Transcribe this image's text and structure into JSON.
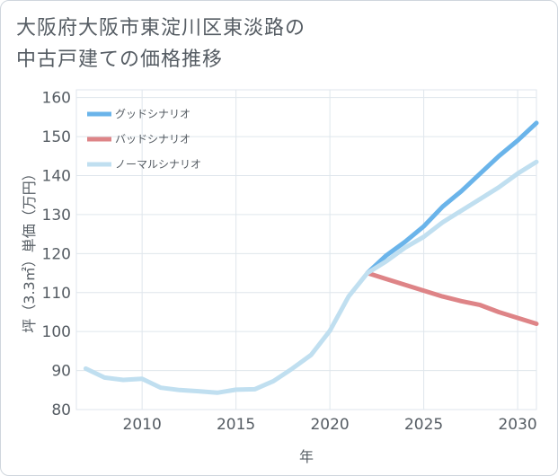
{
  "title": {
    "line1": "大阪府大阪市東淀川区東淡路の",
    "line2": "中古戸建ての価格推移"
  },
  "chart_data": {
    "type": "line",
    "xlabel": "年",
    "ylabel": "坪（3.3㎡）単価（万円）",
    "xlim": [
      2006.5,
      2031
    ],
    "ylim": [
      80,
      162
    ],
    "xticks": [
      2010,
      2015,
      2020,
      2025,
      2030
    ],
    "yticks": [
      80,
      90,
      100,
      110,
      120,
      130,
      140,
      150,
      160
    ],
    "grid": true,
    "legend_position": "top-left",
    "series": [
      {
        "name": "グッドシナリオ",
        "color": "#6ab4ea",
        "x": [
          2022,
          2023,
          2024,
          2025,
          2026,
          2027,
          2028,
          2029,
          2030,
          2031
        ],
        "y": [
          115,
          119.5,
          123,
          127,
          132,
          136,
          140.5,
          145,
          149,
          153.5
        ]
      },
      {
        "name": "バッドシナリオ",
        "color": "#de8487",
        "x": [
          2022,
          2023,
          2024,
          2025,
          2026,
          2027,
          2028,
          2029,
          2030,
          2031
        ],
        "y": [
          115,
          113.5,
          112,
          110.5,
          109,
          107.8,
          106.8,
          105,
          103.5,
          102
        ]
      },
      {
        "name": "ノーマルシナリオ",
        "color": "#c0dff0",
        "x": [
          2007,
          2008,
          2009,
          2010,
          2011,
          2012,
          2013,
          2014,
          2015,
          2016,
          2017,
          2018,
          2019,
          2020,
          2021,
          2022,
          2023,
          2024,
          2025,
          2026,
          2027,
          2028,
          2029,
          2030,
          2031
        ],
        "y": [
          90.5,
          88.2,
          87.6,
          87.9,
          85.6,
          85,
          84.7,
          84.3,
          85.1,
          85.2,
          87.3,
          90.5,
          94,
          100.2,
          109,
          115,
          118,
          121.5,
          124.3,
          128,
          131,
          134,
          137,
          140.5,
          143.5
        ]
      }
    ]
  }
}
